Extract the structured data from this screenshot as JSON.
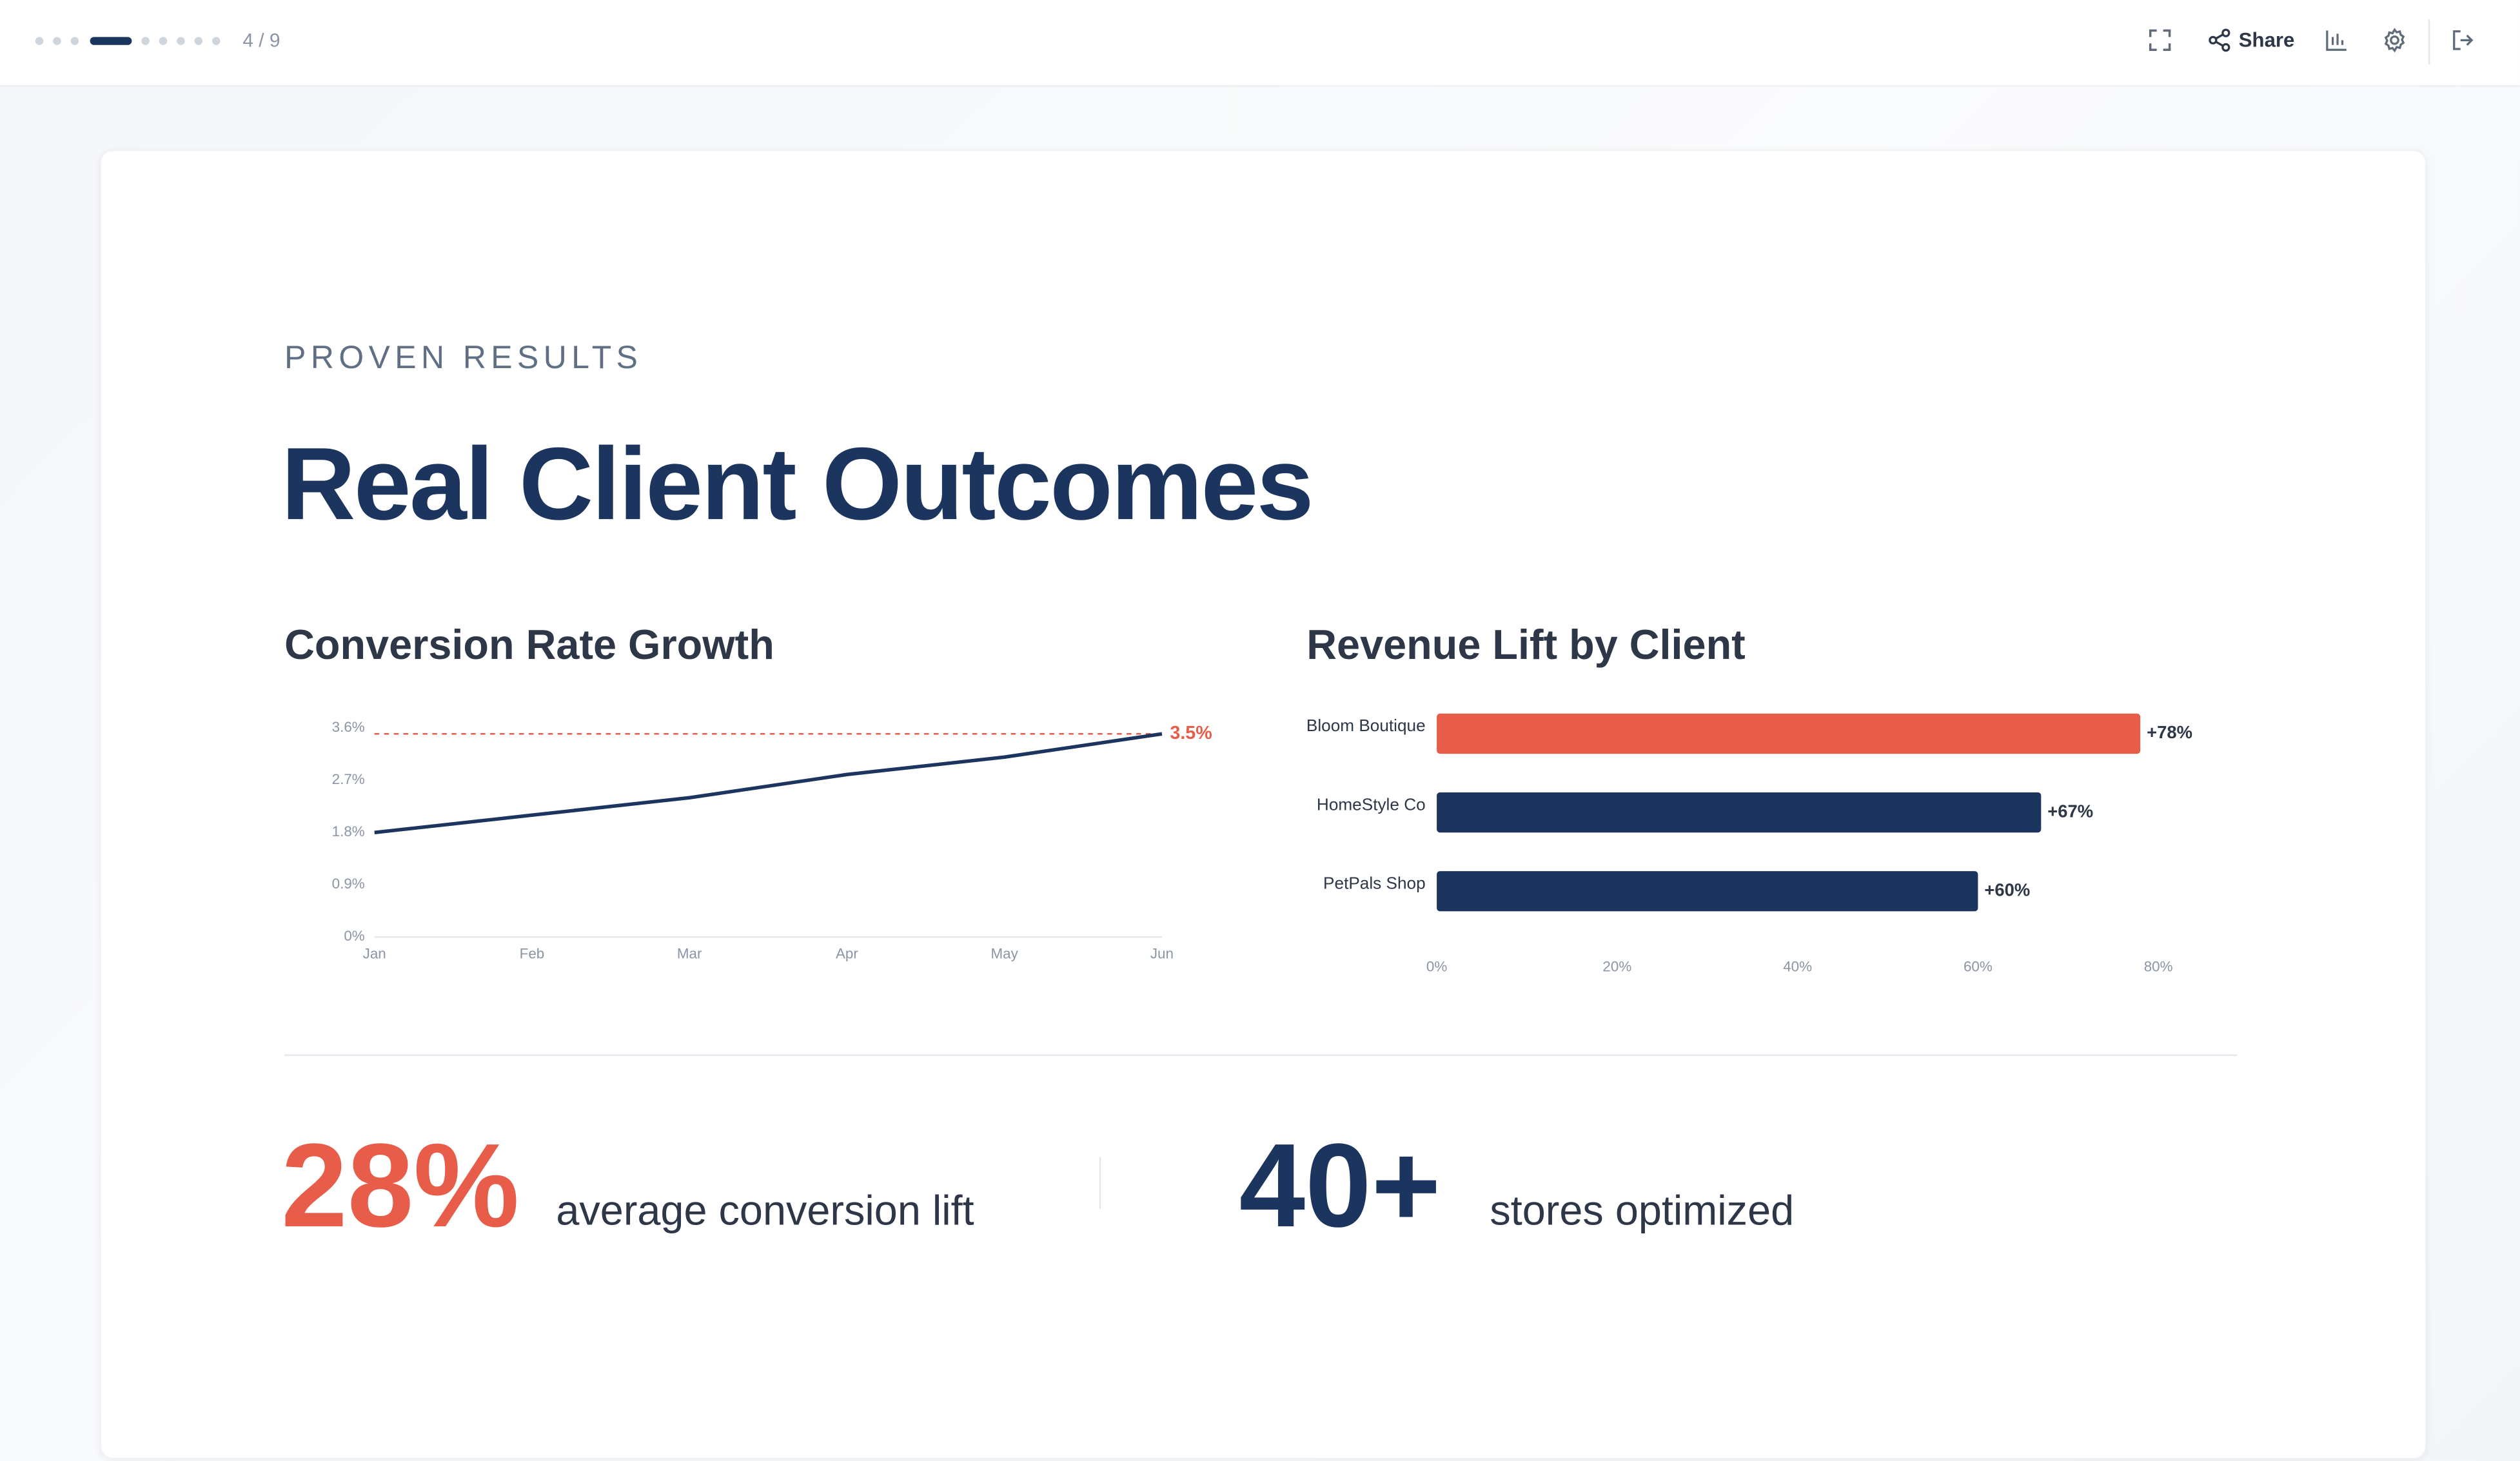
{
  "toolbar": {
    "progress": "4 / 9",
    "share": "Share"
  },
  "slide": {
    "eyebrow": "PROVEN RESULTS",
    "title": "Real Client Outcomes",
    "stats": [
      {
        "value": "28%",
        "label": "average conversion lift"
      },
      {
        "value": "40+",
        "label": "stores optimized"
      }
    ]
  },
  "chart_data": [
    {
      "type": "line",
      "title": "Conversion Rate Growth",
      "categories": [
        "Jan",
        "Feb",
        "Mar",
        "Apr",
        "May",
        "Jun"
      ],
      "values": [
        1.8,
        2.1,
        2.4,
        2.8,
        3.1,
        3.5
      ],
      "color": "#1c355e",
      "ylim": [
        0,
        3.6
      ],
      "yticks": [
        {
          "value": 0,
          "label": "0%"
        },
        {
          "value": 0.9,
          "label": "0.9%"
        },
        {
          "value": 1.8,
          "label": "1.8%"
        },
        {
          "value": 2.7,
          "label": "2.7%"
        },
        {
          "value": 3.6,
          "label": "3.6%"
        }
      ],
      "target": {
        "value": 3.5,
        "label": "3.5%",
        "color": "#e85c4a"
      }
    },
    {
      "type": "hbar",
      "title": "Revenue Lift by Client",
      "categories": [
        "Bloom Boutique",
        "HomeStyle Co",
        "PetPals Shop"
      ],
      "values": [
        78,
        67,
        60
      ],
      "value_labels": [
        "+78%",
        "+67%",
        "+60%"
      ],
      "colors": [
        "#e85c4a",
        "#1c355e",
        "#1c355e"
      ],
      "xlim": [
        0,
        80
      ],
      "xticks": [
        {
          "value": 0,
          "label": "0%"
        },
        {
          "value": 20,
          "label": "20%"
        },
        {
          "value": 40,
          "label": "40%"
        },
        {
          "value": 60,
          "label": "60%"
        },
        {
          "value": 80,
          "label": "80%"
        }
      ]
    }
  ]
}
